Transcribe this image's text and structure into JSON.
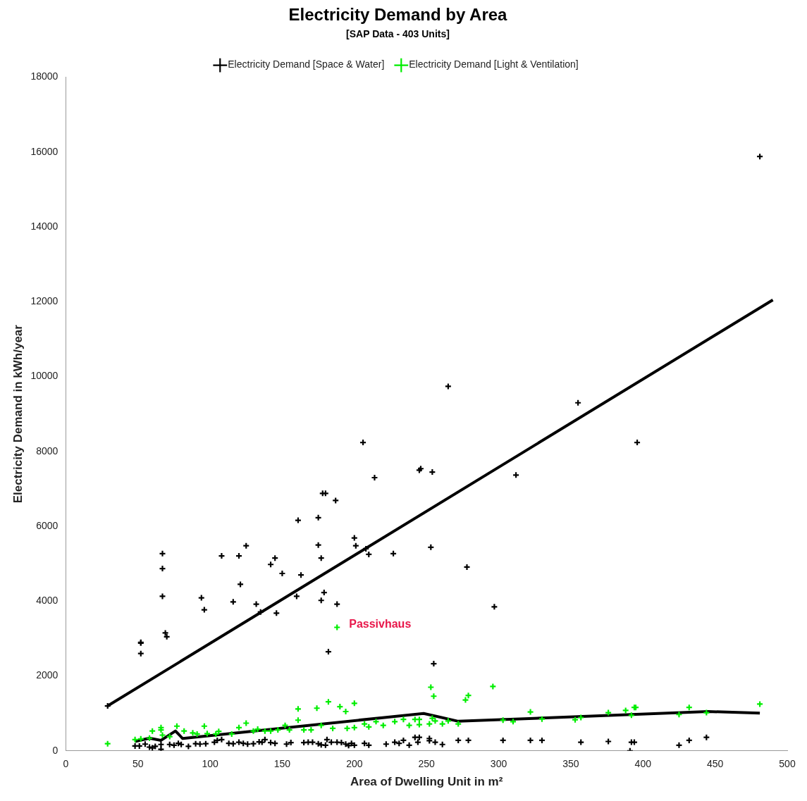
{
  "chart_data": {
    "type": "scatter",
    "title": "Electricity Demand by Area",
    "subtitle": "[SAP Data - 403 Units]",
    "xlabel": "Area of Dwelling Unit in m²",
    "ylabel": "Electricity Demand in kWh/year",
    "xlim": [
      0,
      500
    ],
    "xticks": [
      0,
      50,
      100,
      150,
      200,
      250,
      300,
      350,
      400,
      450,
      500
    ],
    "ylim": [
      0,
      18000
    ],
    "yticks": [
      0,
      2000,
      4000,
      6000,
      8000,
      10000,
      12000,
      14000,
      16000,
      18000
    ],
    "grid": false,
    "legend": "top",
    "marker": "cross",
    "annotations": [
      {
        "text": "Passivhaus",
        "x": 188,
        "y": 3300
      }
    ],
    "series": [
      {
        "name": "Electricity Demand [Space & Water]",
        "color": "#000000",
        "x": [
          29,
          52,
          52,
          52,
          67,
          67,
          67,
          69,
          70,
          94,
          96,
          108,
          116,
          120,
          121,
          125,
          132,
          135,
          142,
          145,
          146,
          150,
          161,
          160,
          163,
          175,
          175,
          177,
          177,
          179,
          178,
          180,
          182,
          187,
          188,
          200,
          201,
          206,
          208,
          210,
          214,
          227,
          245,
          246,
          254,
          253,
          255,
          265,
          278,
          297,
          312,
          355,
          396,
          481,
          48,
          51,
          55,
          58,
          60,
          62,
          66,
          66,
          72,
          75,
          78,
          80,
          85,
          90,
          93,
          97,
          103,
          105,
          108,
          113,
          116,
          120,
          123,
          126,
          130,
          134,
          136,
          138,
          142,
          145,
          153,
          156,
          165,
          168,
          171,
          175,
          177,
          180,
          181,
          184,
          188,
          191,
          194,
          196,
          198,
          200,
          207,
          210,
          222,
          231,
          228,
          234,
          238,
          242,
          244,
          245,
          252,
          252,
          256,
          261,
          272,
          279,
          303,
          322,
          330,
          357,
          376,
          391,
          392,
          394,
          425,
          432,
          444
        ],
        "values": [
          1200,
          2880,
          2900,
          2600,
          5270,
          4870,
          4130,
          3150,
          3050,
          4090,
          3770,
          5210,
          3980,
          5210,
          4450,
          5480,
          3920,
          3710,
          4980,
          5150,
          3680,
          4740,
          6160,
          4130,
          4700,
          6230,
          5500,
          5150,
          4020,
          4230,
          6880,
          6880,
          2650,
          6690,
          3920,
          5690,
          5480,
          8240,
          5400,
          5250,
          7300,
          5270,
          7500,
          7540,
          7450,
          5440,
          2330,
          9740,
          4910,
          3850,
          7370,
          9300,
          8240,
          15880,
          130,
          130,
          180,
          100,
          80,
          120,
          170,
          40,
          170,
          150,
          200,
          170,
          120,
          190,
          180,
          190,
          230,
          280,
          300,
          200,
          190,
          230,
          200,
          180,
          190,
          240,
          230,
          300,
          220,
          200,
          180,
          220,
          220,
          230,
          230,
          190,
          160,
          150,
          300,
          230,
          230,
          220,
          180,
          140,
          200,
          150,
          200,
          150,
          180,
          200,
          230,
          280,
          150,
          360,
          230,
          360,
          330,
          270,
          230,
          170,
          280,
          280,
          280,
          280,
          280,
          230,
          250,
          0,
          230,
          230,
          150,
          280,
          360
        ]
      },
      {
        "name": "Electricity Demand [Light & Ventilation]",
        "color": "#00ee00",
        "x": [
          29,
          48,
          52,
          58,
          60,
          66,
          66,
          67,
          72,
          77,
          82,
          88,
          91,
          96,
          98,
          104,
          106,
          115,
          120,
          125,
          130,
          133,
          138,
          142,
          147,
          152,
          155,
          161,
          161,
          165,
          170,
          174,
          177,
          182,
          185,
          190,
          194,
          200,
          200,
          195,
          207,
          210,
          215,
          220,
          228,
          234,
          238,
          242,
          245,
          245,
          252,
          253,
          255,
          254,
          256,
          261,
          265,
          272,
          277,
          279,
          296,
          303,
          310,
          322,
          330,
          353,
          357,
          376,
          388,
          392,
          394,
          395,
          425,
          432,
          444,
          481,
          188
        ],
        "values": [
          190,
          300,
          320,
          340,
          530,
          620,
          560,
          420,
          380,
          660,
          530,
          480,
          450,
          660,
          460,
          450,
          520,
          450,
          620,
          740,
          530,
          580,
          530,
          530,
          560,
          680,
          560,
          1120,
          820,
          560,
          560,
          1140,
          680,
          1310,
          600,
          1180,
          1050,
          1270,
          620,
          600,
          720,
          640,
          780,
          680,
          780,
          840,
          680,
          840,
          840,
          700,
          720,
          1700,
          1460,
          870,
          800,
          720,
          800,
          720,
          1360,
          1480,
          1720,
          820,
          780,
          1040,
          850,
          830,
          890,
          1020,
          1080,
          950,
          1160,
          1160,
          970,
          1160,
          1020,
          1250,
          3300
        ]
      },
      {
        "type": "line",
        "marker": "none",
        "color": "#000000",
        "x": [
          29,
          490
        ],
        "values": [
          1200,
          12050
        ]
      },
      {
        "type": "line",
        "marker": "none",
        "color": "#000000",
        "x": [
          48,
          58,
          66,
          76,
          81,
          248,
          272,
          445,
          481
        ],
        "values": [
          250,
          340,
          280,
          530,
          330,
          1000,
          790,
          1050,
          1010
        ]
      }
    ]
  }
}
